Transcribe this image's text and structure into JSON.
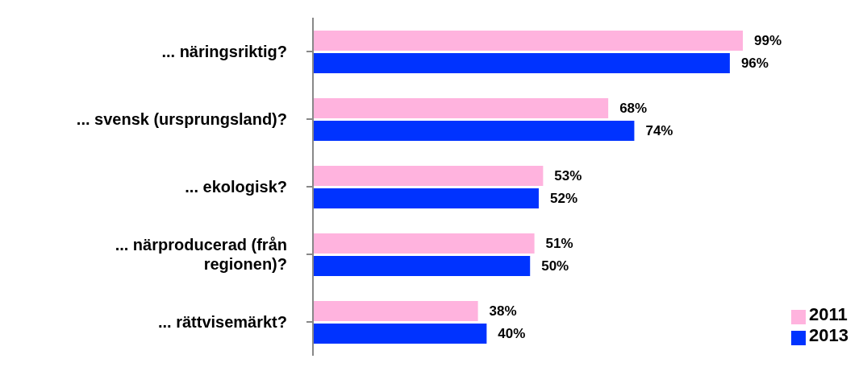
{
  "chart_data": {
    "type": "bar",
    "orientation": "horizontal",
    "categories": [
      "... näringsriktig?",
      "... svensk (ursprungsland)?",
      "... ekologisk?",
      "... närproducerad (från regionen)?",
      "... rättvisemärkt?"
    ],
    "series": [
      {
        "name": "2011",
        "color": "#ffb3de",
        "values": [
          99,
          68,
          53,
          51,
          38
        ],
        "value_labels": [
          "99%",
          "68%",
          "53%",
          "51%",
          "38%"
        ]
      },
      {
        "name": "2013",
        "color": "#0033ff",
        "values": [
          96,
          74,
          52,
          50,
          40
        ],
        "value_labels": [
          "96%",
          "74%",
          "52%",
          "50%",
          "40%"
        ]
      }
    ],
    "legend": "bottom right"
  }
}
